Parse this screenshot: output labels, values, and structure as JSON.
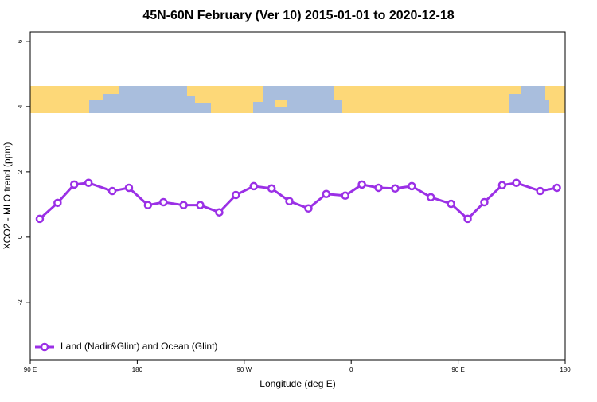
{
  "chart_data": {
    "type": "line",
    "title": "45N-60N February (Ver 10)   2015-01-01 to 2020-12-18",
    "x_label": "Longitude (deg E)",
    "y_label": "XCO2 - MLO trend (ppm)",
    "x": [
      98,
      113,
      127,
      139,
      159,
      173,
      189,
      202,
      219,
      233,
      249,
      263,
      278,
      293,
      308,
      324,
      339,
      355,
      369,
      383,
      397,
      411,
      427,
      444,
      458,
      472,
      487,
      499,
      519,
      533
    ],
    "series": [
      {
        "name": "Land (Nadir&Glint) and Ocean (Glint)",
        "color": "#9b30e6",
        "values": [
          0.56,
          1.05,
          1.61,
          1.66,
          1.41,
          1.51,
          0.98,
          1.07,
          0.98,
          0.98,
          0.76,
          1.29,
          1.56,
          1.49,
          1.1,
          0.88,
          1.32,
          1.27,
          1.61,
          1.51,
          1.49,
          1.56,
          1.22,
          1.02,
          0.56,
          1.07,
          1.59,
          1.66,
          1.41,
          1.51
        ]
      }
    ],
    "xlim": [
      90,
      540
    ],
    "xticks": [
      {
        "value": 90,
        "label": "90 E"
      },
      {
        "value": 180,
        "label": "180"
      },
      {
        "value": 270,
        "label": "90 W"
      },
      {
        "value": 360,
        "label": "0"
      },
      {
        "value": 450,
        "label": "90 E"
      },
      {
        "value": 540,
        "label": "180"
      }
    ],
    "ylim": [
      -3.76,
      6.29
    ],
    "yticks": [
      -2,
      0,
      2,
      4,
      6
    ],
    "legend": "bottom-left"
  }
}
